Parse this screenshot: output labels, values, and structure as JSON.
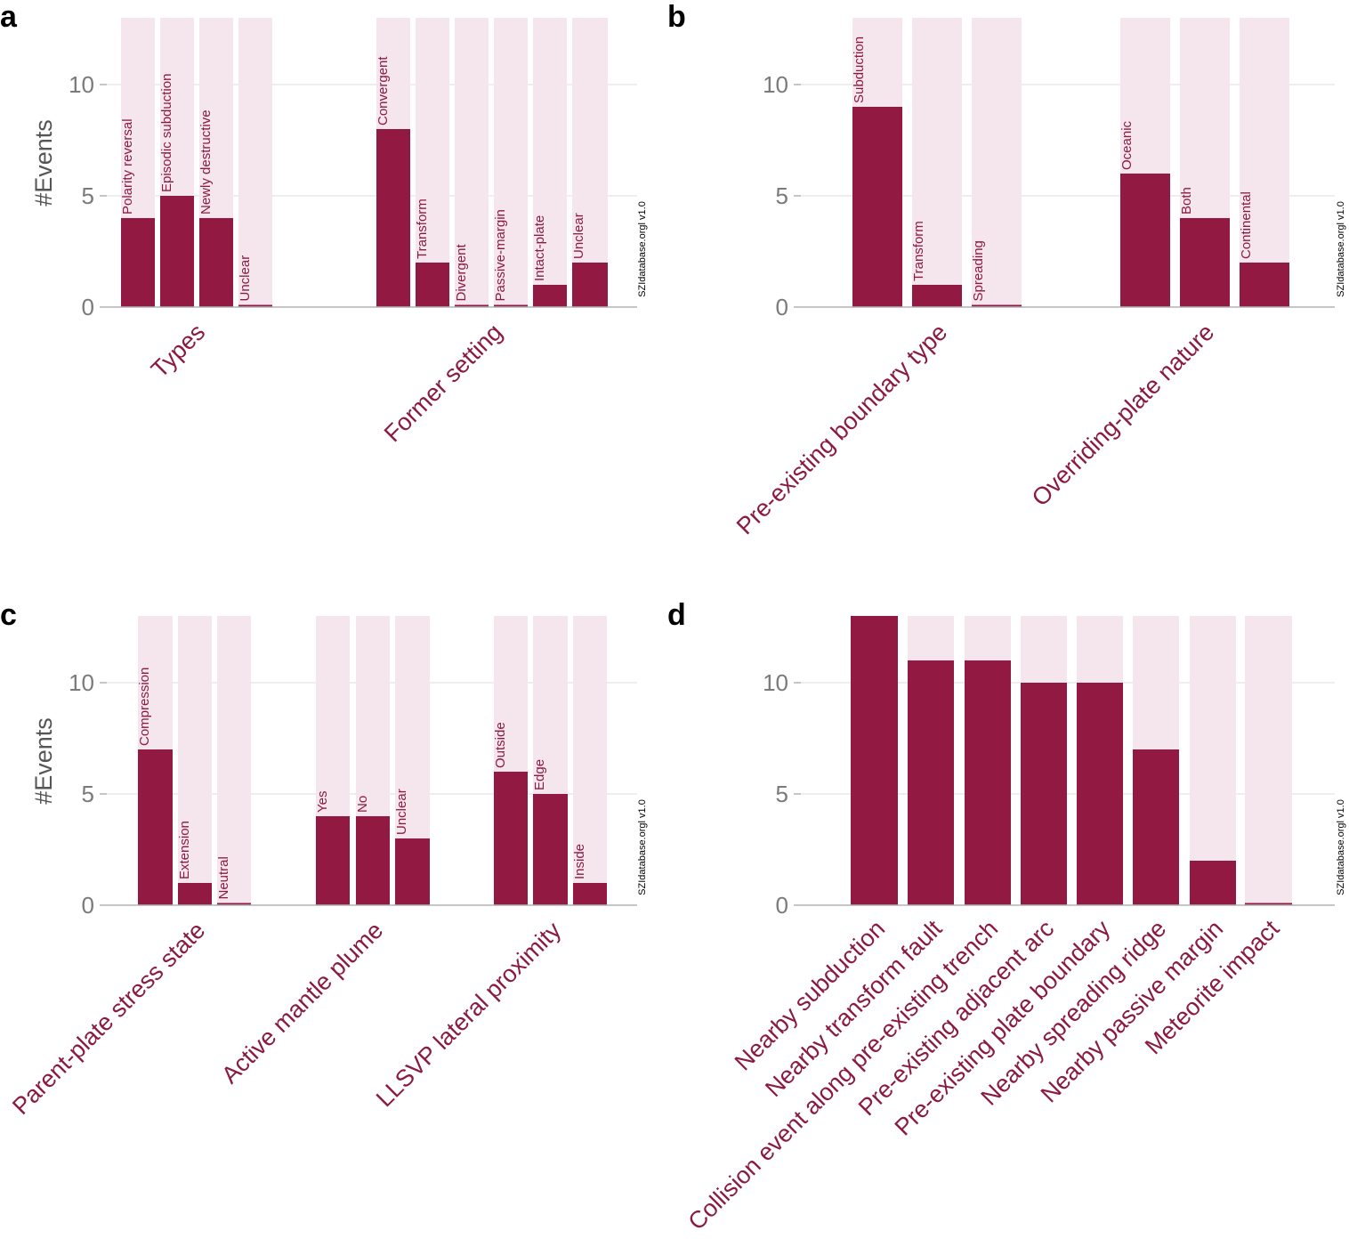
{
  "colors": {
    "bar": "#921a42",
    "background_bar": "#f4e6ec",
    "label": "#8b1a42",
    "grid": "#e9e9e9",
    "axis": "#b3b3b3"
  },
  "chart_data": [
    {
      "panel": "a",
      "type": "bar",
      "ylabel": "#Events",
      "ylim": [
        0,
        13
      ],
      "yticks": [
        0,
        5,
        10
      ],
      "watermark": "SZIdatabase.orgl v1.0",
      "groups": [
        {
          "name": "Types",
          "categories": [
            "Polarity reversal",
            "Episodic subduction",
            "Newly destructive",
            "Unclear"
          ],
          "values": [
            4,
            5,
            4,
            0
          ]
        },
        {
          "name": "Former setting",
          "categories": [
            "Convergent",
            "Transform",
            "Divergent",
            "Passive-margin",
            "Intact-plate",
            "Unclear"
          ],
          "values": [
            8,
            2,
            0,
            0,
            1,
            2
          ]
        }
      ]
    },
    {
      "panel": "b",
      "type": "bar",
      "ylabel": "",
      "ylim": [
        0,
        13
      ],
      "yticks": [
        0,
        5,
        10
      ],
      "watermark": "SZIdatabase.orgl v1.0",
      "groups": [
        {
          "name": "Pre-existing boundary type",
          "categories": [
            "Subduction",
            "Transform",
            "Spreading"
          ],
          "values": [
            9,
            1,
            0
          ]
        },
        {
          "name": "Overriding-plate nature",
          "categories": [
            "Oceanic",
            "Both",
            "Continental"
          ],
          "values": [
            6,
            4,
            2
          ]
        }
      ]
    },
    {
      "panel": "c",
      "type": "bar",
      "ylabel": "#Events",
      "ylim": [
        0,
        13
      ],
      "yticks": [
        0,
        5,
        10
      ],
      "watermark": "SZIdatabase.orgl v1.0",
      "groups": [
        {
          "name": "Parent-plate stress state",
          "categories": [
            "Compression",
            "Extension",
            "Neutral"
          ],
          "values": [
            7,
            1,
            0
          ]
        },
        {
          "name": "Active mantle plume",
          "categories": [
            "Yes",
            "No",
            "Unclear"
          ],
          "values": [
            4,
            4,
            3
          ]
        },
        {
          "name": "LLSVP lateral proximity",
          "categories": [
            "Outside",
            "Edge",
            "Inside"
          ],
          "values": [
            6,
            5,
            1
          ]
        }
      ]
    },
    {
      "panel": "d",
      "type": "bar",
      "ylabel": "",
      "ylim": [
        0,
        13
      ],
      "yticks": [
        0,
        5,
        10
      ],
      "watermark": "SZIdatabase.orgl v1.0",
      "categories": [
        "Nearby subduction",
        "Nearby transform fault",
        "Collision event along pre-existing trench",
        "Pre-existing adjacent arc",
        "Pre-existing plate boundary",
        "Nearby spreading ridge",
        "Nearby passive margin",
        "Meteorite impact"
      ],
      "values": [
        13,
        11,
        11,
        10,
        10,
        7,
        2,
        0
      ]
    }
  ]
}
